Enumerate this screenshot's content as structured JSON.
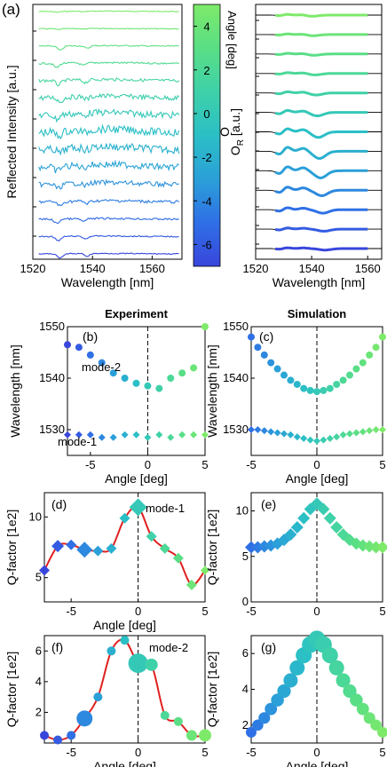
{
  "figure_label": "(a)",
  "chart_data": [
    {
      "id": "a_left",
      "type": "line",
      "panel_label": "(a)",
      "xlabel": "Wavelength [nm]",
      "ylabel": "Reflected Intensity [a.u.]",
      "xlim": [
        1520,
        1570
      ],
      "xticks": [
        1520,
        1540,
        1560
      ],
      "series_count": 15,
      "notches": [
        1528,
        1537
      ]
    },
    {
      "id": "a_colorbar",
      "type": "heatmap",
      "label": "Angle [deg]",
      "range": [
        -7,
        5
      ],
      "ticks": [
        4,
        2,
        0,
        -2,
        -4,
        -6
      ],
      "colors": [
        "#3846dc",
        "#2f70e6",
        "#2b9fd8",
        "#2bbfc6",
        "#3fd1a8",
        "#59de86",
        "#7eea6a"
      ]
    },
    {
      "id": "a_right",
      "type": "line",
      "xlabel": "Wavelength [nm]",
      "ylabel": "O",
      "ylabel_sub": "R",
      "ylabel_suffix": " [a.u.]",
      "xlim": [
        1520,
        1565
      ],
      "xticks": [
        1520,
        1540,
        1560
      ],
      "series_count": 13
    },
    {
      "id": "b",
      "type": "scatter",
      "panel_label": "(b)",
      "header": "Experiment",
      "xlabel": "Angle [deg]",
      "ylabel": "Wavelength [nm]",
      "xlim": [
        -7,
        5
      ],
      "ylim": [
        1525,
        1550
      ],
      "xticks": [
        -5,
        0,
        5
      ],
      "yticks": [
        1530,
        1540,
        1550
      ],
      "annotations": [
        "mode-2",
        "mode-1"
      ],
      "series": [
        {
          "name": "mode-2",
          "marker": "circle",
          "x": [
            -7,
            -6,
            -5,
            -4,
            -3,
            -2,
            -1,
            0,
            1,
            2,
            3,
            4,
            5
          ],
          "y": [
            1546.5,
            1546,
            1544.5,
            1543,
            1541,
            1540,
            1539,
            1538.5,
            1538,
            1540,
            1541,
            1542,
            1550
          ]
        },
        {
          "name": "mode-1",
          "marker": "diamond",
          "x": [
            -7,
            -6,
            -5,
            -4,
            -3,
            -2,
            -1,
            0,
            1,
            2,
            3,
            4,
            5
          ],
          "y": [
            1529,
            1529,
            1529,
            1528.5,
            1528.5,
            1529,
            1529,
            1528.5,
            1529,
            1528.5,
            1529,
            1529,
            1529
          ]
        }
      ]
    },
    {
      "id": "c",
      "type": "scatter",
      "panel_label": "(c)",
      "header": "Simulation",
      "xlabel": "Angle [deg]",
      "ylabel": "Wavelength [nm]",
      "xlim": [
        -5,
        5
      ],
      "ylim": [
        1525,
        1550
      ],
      "xticks": [
        -5,
        0,
        5
      ],
      "yticks": [
        1530,
        1540,
        1550
      ],
      "series": [
        {
          "name": "mode-2",
          "marker": "circle",
          "x": [
            -5,
            -4.5,
            -4,
            -3.5,
            -3,
            -2.5,
            -2,
            -1.5,
            -1,
            -0.5,
            0,
            0.5,
            1,
            1.5,
            2,
            2.5,
            3,
            3.5,
            4,
            4.5,
            5
          ],
          "y": [
            1548,
            1546,
            1544.5,
            1543,
            1541.8,
            1540.6,
            1539.6,
            1538.8,
            1538,
            1537.6,
            1537.4,
            1537.6,
            1538,
            1538.8,
            1539.6,
            1540.6,
            1541.8,
            1543,
            1544.5,
            1546,
            1548
          ]
        },
        {
          "name": "mode-1",
          "marker": "diamond",
          "x": [
            -5,
            -4.5,
            -4,
            -3.5,
            -3,
            -2.5,
            -2,
            -1.5,
            -1,
            -0.5,
            0,
            0.5,
            1,
            1.5,
            2,
            2.5,
            3,
            3.5,
            4,
            4.5,
            5
          ],
          "y": [
            1530,
            1530,
            1529.8,
            1529.6,
            1529.4,
            1529.2,
            1529,
            1528.6,
            1528.3,
            1528,
            1527.8,
            1528,
            1528.3,
            1528.6,
            1529,
            1529.2,
            1529.4,
            1529.6,
            1529.8,
            1530,
            1530
          ]
        }
      ]
    },
    {
      "id": "d",
      "type": "scatter",
      "panel_label": "(d)",
      "xlabel": "Angle [deg]",
      "ylabel": "Q-factor [1e2]",
      "xlim": [
        -7,
        5
      ],
      "ylim": [
        3,
        12
      ],
      "xticks": [
        -5,
        0,
        5
      ],
      "yticks": [
        5,
        10
      ],
      "annotations": [
        "mode-1"
      ],
      "series": [
        {
          "name": "mode-1",
          "marker": "diamond",
          "x": [
            -7,
            -6,
            -5,
            -4,
            -3,
            -2,
            -1,
            0,
            1,
            2,
            3,
            4,
            5
          ],
          "y": [
            5.6,
            7.6,
            7.7,
            7.3,
            7.2,
            7.4,
            9.9,
            10.8,
            8.4,
            7.4,
            6.6,
            4.4,
            5.6
          ],
          "size": [
            6,
            7,
            6,
            9,
            6,
            6,
            6,
            10,
            6,
            6,
            6,
            6,
            5
          ]
        }
      ]
    },
    {
      "id": "e",
      "type": "scatter",
      "panel_label": "(e)",
      "xlabel": "",
      "ylabel": "Q-factor [1e2]",
      "xlim": [
        -5,
        5
      ],
      "ylim": [
        0,
        12
      ],
      "xticks": [
        -5,
        0,
        5
      ],
      "yticks": [
        0,
        5,
        10
      ],
      "series": [
        {
          "name": "mode-1",
          "marker": "diamond",
          "x": [
            -5,
            -4.5,
            -4,
            -3.5,
            -3,
            -2.5,
            -2,
            -1.5,
            -1,
            -0.5,
            0,
            0.5,
            1,
            1.5,
            2,
            2.5,
            3,
            3.5,
            4,
            4.5,
            5
          ],
          "y": [
            6,
            6,
            6.1,
            6.2,
            6.4,
            6.8,
            7.4,
            8.2,
            9.2,
            10.2,
            10.8,
            10.2,
            9.2,
            8.2,
            7.4,
            6.8,
            6.4,
            6.2,
            6.1,
            6,
            6
          ]
        }
      ]
    },
    {
      "id": "f",
      "type": "scatter",
      "panel_label": "(f)",
      "xlabel": "Angle [deg]",
      "ylabel": "Q-factor [1e2]",
      "xlim": [
        -7,
        5
      ],
      "ylim": [
        0,
        7
      ],
      "xticks": [
        -5,
        0,
        5
      ],
      "yticks": [
        2,
        4,
        6
      ],
      "annotations": [
        "mode-2"
      ],
      "series": [
        {
          "name": "mode-2",
          "marker": "circle",
          "x": [
            -7,
            -6,
            -5,
            -4,
            -3,
            -2,
            -1,
            0,
            1,
            2,
            3,
            4,
            5
          ],
          "y": [
            0.5,
            0.2,
            0.5,
            1.6,
            3.0,
            6.0,
            6.7,
            5.2,
            5.1,
            1.8,
            1.4,
            0.5,
            0.5
          ],
          "size": [
            5,
            5,
            5,
            9,
            5,
            5,
            5,
            11,
            7,
            5,
            5,
            6,
            7
          ]
        }
      ]
    },
    {
      "id": "g",
      "type": "scatter",
      "panel_label": "(g)",
      "xlabel": "Angle [deg]",
      "ylabel": "Q-factor [1e2]",
      "xlim": [
        -5,
        5
      ],
      "ylim": [
        1,
        7
      ],
      "xticks": [
        -5,
        0,
        5
      ],
      "yticks": [
        2,
        4,
        6
      ],
      "series": [
        {
          "name": "mode-2",
          "marker": "circle",
          "x": [
            -5,
            -4.5,
            -4,
            -3.5,
            -3,
            -2.5,
            -2,
            -1.5,
            -1,
            -0.5,
            0,
            0.5,
            1,
            1.5,
            2,
            2.5,
            3,
            3.5,
            4,
            4.5,
            5
          ],
          "y": [
            1.6,
            2.0,
            2.4,
            2.9,
            3.4,
            3.9,
            4.5,
            5.2,
            5.9,
            6.5,
            6.8,
            6.5,
            5.9,
            5.2,
            4.5,
            3.9,
            3.4,
            2.9,
            2.4,
            2.0,
            1.6
          ]
        }
      ]
    }
  ]
}
